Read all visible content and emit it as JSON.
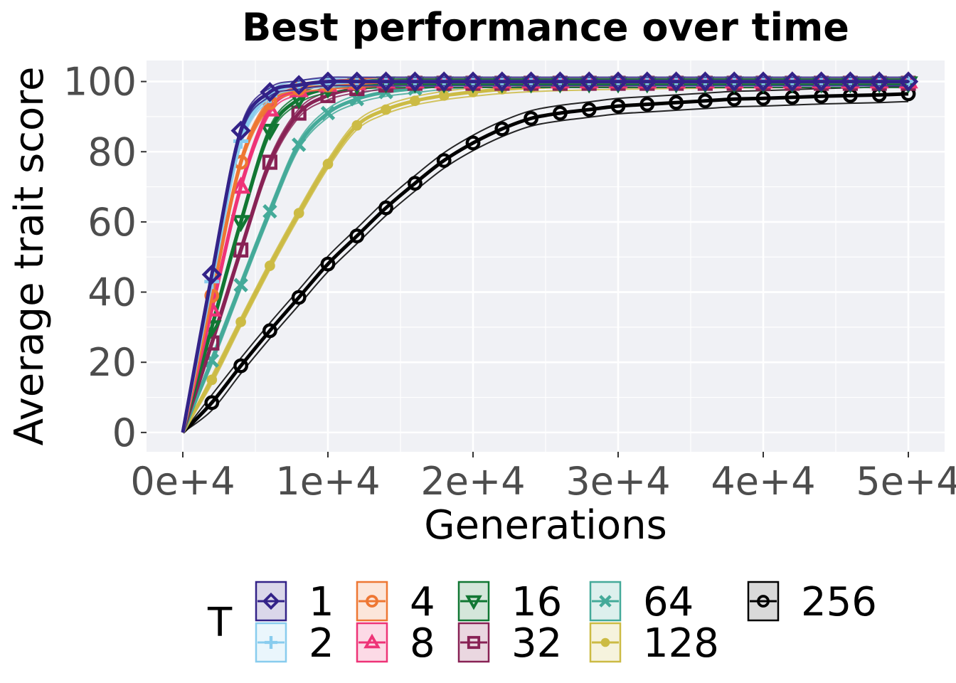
{
  "chart_data": {
    "type": "line",
    "title": "Best performance over time",
    "xlabel": "Generations",
    "ylabel": "Average trait score",
    "xlim": [
      -2500,
      52500
    ],
    "ylim": [
      -5.5,
      106
    ],
    "x_ticks": [
      0,
      10000,
      20000,
      30000,
      40000,
      50000
    ],
    "x_tick_labels": [
      "0e+4",
      "1e+4",
      "2e+4",
      "3e+4",
      "4e+4",
      "5e+4"
    ],
    "y_ticks": [
      0,
      20,
      40,
      60,
      80,
      100
    ],
    "y_tick_labels": [
      "0",
      "20",
      "40",
      "60",
      "80",
      "100"
    ],
    "grid": true,
    "legend_title": "T",
    "legend_position": "bottom",
    "x": [
      0,
      2000,
      4000,
      6000,
      8000,
      10000,
      12000,
      14000,
      16000,
      18000,
      20000,
      22000,
      24000,
      26000,
      28000,
      30000,
      32000,
      34000,
      36000,
      38000,
      40000,
      42000,
      44000,
      46000,
      48000,
      50000
    ],
    "series": [
      {
        "name": "1",
        "color": "#332288",
        "marker": "diamond",
        "values": [
          0,
          45,
          86,
          97,
          99,
          100,
          100,
          100,
          100,
          100,
          100,
          100,
          100,
          100,
          100,
          100,
          100,
          100,
          100,
          100,
          100,
          100,
          100,
          100,
          100,
          100
        ]
      },
      {
        "name": "2",
        "color": "#88ccee",
        "marker": "plus",
        "values": [
          0,
          43,
          83,
          96,
          99,
          99.5,
          100,
          100,
          100,
          100,
          100,
          100,
          100,
          100,
          100,
          100,
          100,
          100,
          100,
          100,
          100,
          100,
          100,
          100,
          100,
          100
        ]
      },
      {
        "name": "4",
        "color": "#ee7733",
        "marker": "circle-open",
        "values": [
          0,
          39,
          77,
          94,
          98,
          99,
          99.5,
          100,
          100,
          100,
          100,
          100,
          100,
          100,
          100,
          100,
          100,
          100,
          100,
          100,
          100,
          100,
          100,
          100,
          100,
          100
        ]
      },
      {
        "name": "8",
        "color": "#ee3377",
        "marker": "triangle",
        "values": [
          0,
          35,
          70,
          92,
          97.5,
          99,
          99.5,
          100,
          100,
          100,
          100,
          100,
          100,
          100,
          100,
          100,
          100,
          100,
          100,
          100,
          100,
          100,
          100,
          100,
          100,
          100
        ]
      },
      {
        "name": "16",
        "color": "#117733",
        "marker": "triangle-down",
        "values": [
          0,
          30,
          60,
          86,
          95,
          98,
          99,
          99.5,
          99.5,
          99.5,
          99.5,
          99.5,
          99.5,
          99.5,
          99.5,
          99.5,
          99.5,
          99.5,
          99.5,
          99.5,
          99.5,
          99.5,
          99.5,
          99.5,
          99.5,
          99.5
        ]
      },
      {
        "name": "32",
        "color": "#882255",
        "marker": "square",
        "values": [
          0,
          25.5,
          52,
          77,
          91,
          96,
          98,
          99,
          99.5,
          99.5,
          99.5,
          99.5,
          99.5,
          99.5,
          99.5,
          99.5,
          99.5,
          99.5,
          99.5,
          99.5,
          99.5,
          99.5,
          99.5,
          99.5,
          99.5,
          99.5
        ]
      },
      {
        "name": "64",
        "color": "#44aa99",
        "marker": "x",
        "values": [
          0,
          20.5,
          42,
          63,
          82,
          91,
          95,
          97,
          98,
          99,
          99.5,
          99.5,
          99.5,
          99.5,
          99.5,
          99.5,
          99.5,
          99.5,
          99.5,
          99.5,
          99.5,
          99.5,
          99.5,
          99.5,
          99.5,
          99.5
        ]
      },
      {
        "name": "128",
        "color": "#ccbb44",
        "marker": "circle-filled",
        "values": [
          0,
          15,
          31.5,
          47.5,
          62.5,
          76.5,
          87.5,
          92,
          94.5,
          96,
          97,
          97.8,
          98.3,
          98.6,
          98.8,
          99,
          99.1,
          99.2,
          99.3,
          99.4,
          99.4,
          99.5,
          99.5,
          99.5,
          99.5,
          99.5
        ]
      },
      {
        "name": "256",
        "color": "#000000",
        "marker": "circle-open",
        "values": [
          0,
          8.5,
          19,
          29,
          38.5,
          48,
          56,
          64,
          71,
          77.5,
          82.5,
          86.5,
          89.5,
          91,
          92,
          93,
          93.5,
          94,
          94.5,
          95,
          95.2,
          95.5,
          95.8,
          96,
          96.2,
          96.5
        ]
      }
    ]
  }
}
